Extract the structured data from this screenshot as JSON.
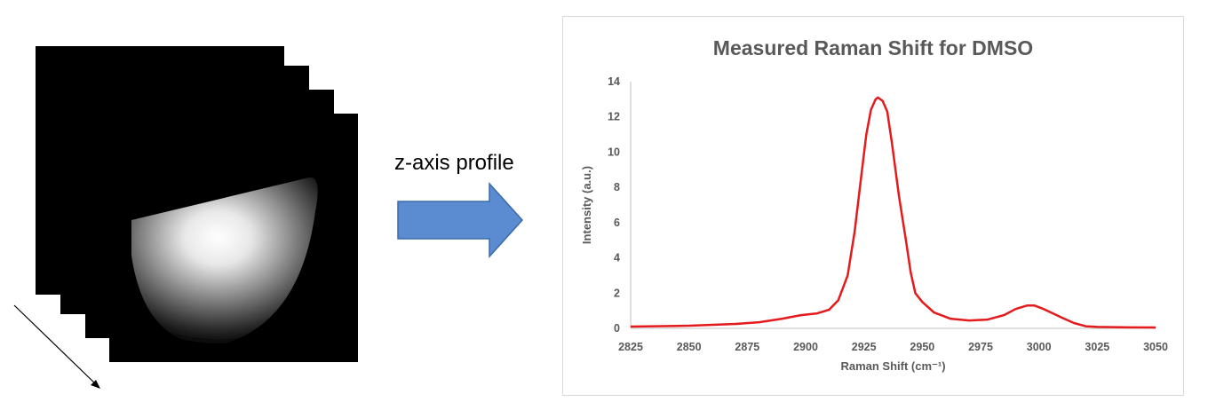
{
  "diagram": {
    "arrow_label": "z-axis profile",
    "arrow_color": "#5b8bd0",
    "stack_frame_count": 4
  },
  "chart_data": {
    "type": "line",
    "title": "Measured Raman Shift for DMSO",
    "xlabel": "Raman Shift (cm⁻¹)",
    "ylabel": "Intensity (a.u.)",
    "xlim": [
      2825,
      3050
    ],
    "ylim": [
      0,
      14
    ],
    "xticks": [
      2825,
      2850,
      2875,
      2900,
      2925,
      2950,
      2975,
      3000,
      3025,
      3050
    ],
    "yticks": [
      0,
      2,
      4,
      6,
      8,
      10,
      12,
      14
    ],
    "grid": false,
    "line_color": "#e41a1c",
    "series": [
      {
        "x": [
          2825,
          2850,
          2870,
          2880,
          2890,
          2898,
          2905,
          2910,
          2914,
          2918,
          2921,
          2924,
          2926,
          2928,
          2930,
          2931,
          2933,
          2935,
          2937,
          2940,
          2943,
          2945,
          2947,
          2950,
          2955,
          2962,
          2970,
          2978,
          2985,
          2990,
          2995,
          2998,
          3002,
          3006,
          3010,
          3015,
          3020,
          3025,
          3035,
          3050
        ],
        "y": [
          0.1,
          0.15,
          0.25,
          0.35,
          0.55,
          0.75,
          0.85,
          1.05,
          1.6,
          3.0,
          5.5,
          8.8,
          11.0,
          12.4,
          13.0,
          13.1,
          12.9,
          12.3,
          10.5,
          7.5,
          5.0,
          3.2,
          2.0,
          1.5,
          0.9,
          0.55,
          0.45,
          0.5,
          0.75,
          1.1,
          1.3,
          1.3,
          1.1,
          0.85,
          0.6,
          0.3,
          0.12,
          0.08,
          0.06,
          0.05
        ]
      }
    ]
  }
}
